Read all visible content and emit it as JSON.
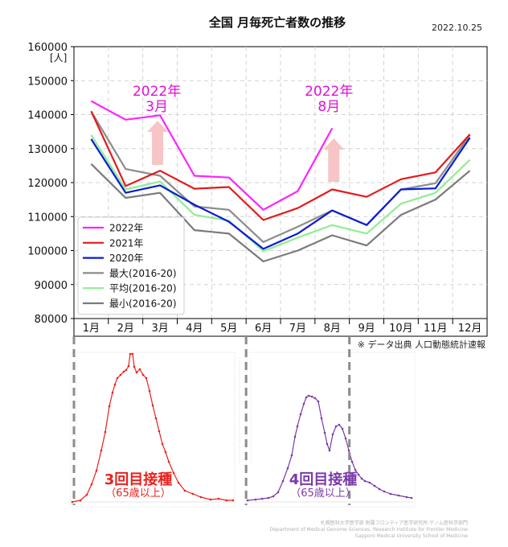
{
  "title": "全国 月毎死亡者数の推移",
  "date": "2022.10.25",
  "unit_label": "[人]",
  "colors": {
    "2022": "#ff22ff",
    "2021": "#e41a1c",
    "2020": "#0a1bd6",
    "max": "#8c8c8c",
    "avg": "#90ee90",
    "min": "#7a7a7a",
    "arrow": "#f7c5c5",
    "vac3": "#e8221c",
    "vac4": "#7b3aa8",
    "dash": "#8c8c8c"
  },
  "annotations": [
    {
      "id": "mar",
      "line1": "2022年",
      "line2": "3月",
      "month_index": 2
    },
    {
      "id": "aug",
      "line1": "2022年",
      "line2": "8月",
      "month_index": 7
    }
  ],
  "chart_data": {
    "type": "line",
    "title": "全国 月毎死亡者数の推移",
    "categories": [
      "1月",
      "2月",
      "3月",
      "4月",
      "5月",
      "6月",
      "7月",
      "8月",
      "9月",
      "10月",
      "11月",
      "12月"
    ],
    "ylabel": "[人]",
    "ylim": [
      80000,
      160000
    ],
    "yticks": [
      80000,
      90000,
      100000,
      110000,
      120000,
      130000,
      140000,
      150000,
      160000
    ],
    "grid": true,
    "legend_position": "lower-left",
    "series": [
      {
        "key": "2022",
        "name": "2022年",
        "values": [
          144000,
          138500,
          139800,
          122000,
          121500,
          112000,
          117500,
          136000,
          null,
          null,
          null,
          null
        ]
      },
      {
        "key": "2021",
        "name": "2021年",
        "values": [
          141000,
          119000,
          123500,
          118200,
          118700,
          109000,
          112500,
          118000,
          115800,
          121000,
          123000,
          134200
        ]
      },
      {
        "key": "2020",
        "name": "2020年",
        "values": [
          132800,
          117000,
          119200,
          113500,
          108500,
          100500,
          105000,
          111800,
          107500,
          118000,
          118300,
          133200
        ]
      },
      {
        "key": "max",
        "name": "最大(2016-20)",
        "values": [
          141000,
          124000,
          122000,
          113000,
          112000,
          102500,
          107000,
          111800,
          107500,
          118000,
          119800,
          134000
        ]
      },
      {
        "key": "avg",
        "name": "平均(2016-20)",
        "values": [
          134000,
          118000,
          120300,
          110500,
          108800,
          99800,
          103800,
          107500,
          105000,
          113800,
          117000,
          126700
        ]
      },
      {
        "key": "min",
        "name": "最小(2016-20)",
        "values": [
          125500,
          115500,
          117000,
          106000,
          105000,
          96800,
          100000,
          104500,
          101500,
          110500,
          115000,
          123500
        ]
      }
    ]
  },
  "source_note": "※ データ出典 人口動態統計速報",
  "vaccination": [
    {
      "id": "v3",
      "label": "3回目接種",
      "sub": "（65歳以上）"
    },
    {
      "id": "v4",
      "label": "4回目接種",
      "sub": "（65歳以上）"
    }
  ],
  "credit_lines": [
    "札幌医科大学医学部 附属フロンティア医学研究所 ゲノム医科学部門",
    "Department of Medical Genome Sciences, Research Institute for Frontier Medicine",
    "Sapporo Medical University School of Medicine"
  ]
}
